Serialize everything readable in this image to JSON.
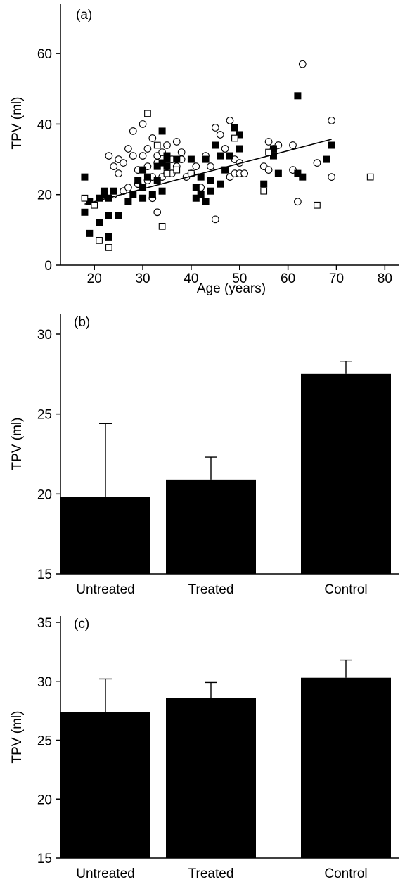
{
  "colors": {
    "ink": "#000000",
    "background": "#ffffff"
  },
  "chart_data": [
    {
      "panel_label": "(a)",
      "type": "scatter",
      "title": "",
      "xlabel": "Age (years)",
      "ylabel": "TPV (ml)",
      "xlim": [
        13,
        83
      ],
      "ylim": [
        0,
        70
      ],
      "xticks": [
        20,
        30,
        40,
        50,
        60,
        70,
        80
      ],
      "yticks": [
        0,
        20,
        40,
        60
      ],
      "grid": false,
      "legend": "none",
      "series": [
        {
          "marker": "open-circle",
          "x": [
            23,
            24,
            25,
            24,
            25,
            26,
            26,
            27,
            27,
            28,
            28,
            29,
            29,
            30,
            30,
            31,
            31,
            31,
            32,
            32,
            32,
            33,
            33,
            33,
            34,
            34,
            35,
            35,
            36,
            36,
            37,
            37,
            38,
            38,
            39,
            40,
            41,
            42,
            43,
            44,
            45,
            45,
            46,
            47,
            48,
            48,
            49,
            49,
            50,
            50,
            51,
            55,
            56,
            56,
            57,
            58,
            61,
            61,
            62,
            63,
            66,
            69,
            69
          ],
          "y": [
            31,
            28,
            30,
            20,
            26,
            21,
            29,
            33,
            22,
            31,
            38,
            27,
            23,
            31,
            40,
            24,
            33,
            28,
            36,
            25,
            19,
            29,
            31,
            15,
            25,
            32,
            26,
            34,
            30,
            26,
            28,
            35,
            32,
            30,
            25,
            26,
            28,
            22,
            31,
            28,
            39,
            13,
            37,
            33,
            41,
            25,
            30,
            26,
            29,
            26,
            26,
            28,
            27,
            35,
            33,
            34,
            34,
            27,
            18,
            57,
            29,
            41,
            25
          ]
        },
        {
          "marker": "filled-square",
          "x": [
            18,
            18,
            19,
            19,
            21,
            21,
            22,
            22,
            23,
            23,
            23,
            24,
            25,
            27,
            28,
            29,
            30,
            30,
            30,
            31,
            32,
            33,
            33,
            34,
            34,
            34,
            35,
            35,
            35,
            37,
            40,
            41,
            41,
            42,
            42,
            43,
            43,
            44,
            44,
            45,
            46,
            46,
            47,
            48,
            49,
            50,
            50,
            55,
            57,
            57,
            58,
            62,
            62,
            63,
            68,
            69
          ],
          "y": [
            15,
            25,
            18,
            9,
            19,
            12,
            21,
            20,
            8,
            14,
            19,
            21,
            14,
            18,
            20,
            24,
            22,
            27,
            19,
            25,
            20,
            24,
            28,
            38,
            29,
            21,
            30,
            28,
            31,
            30,
            30,
            22,
            19,
            20,
            25,
            30,
            18,
            21,
            24,
            34,
            31,
            23,
            27,
            31,
            39,
            37,
            33,
            23,
            31,
            33,
            26,
            48,
            26,
            25,
            30,
            34
          ]
        },
        {
          "marker": "open-square",
          "x": [
            18,
            20,
            21,
            23,
            31,
            33,
            34,
            35,
            37,
            40,
            49,
            55,
            56,
            66,
            77
          ],
          "y": [
            19,
            17,
            7,
            5,
            43,
            34,
            11,
            26,
            27,
            26,
            36,
            21,
            32,
            17,
            25
          ]
        }
      ],
      "regression_line": {
        "x": [
          18,
          69
        ],
        "y": [
          17.3,
          35.7
        ]
      }
    },
    {
      "panel_label": "(b)",
      "type": "bar",
      "title": "",
      "xlabel": "",
      "ylabel": "TPV (ml)",
      "categories": [
        "Untreated",
        "Treated",
        "Control"
      ],
      "values": [
        19.8,
        20.9,
        27.5
      ],
      "error_upper": [
        24.4,
        22.3,
        28.3
      ],
      "ylim": [
        15,
        30
      ],
      "yticks": [
        15,
        20,
        25,
        30
      ],
      "grid": false,
      "legend": "none"
    },
    {
      "panel_label": "(c)",
      "type": "bar",
      "title": "",
      "xlabel": "",
      "ylabel": "TPV (ml)",
      "categories": [
        "Untreated",
        "Treated",
        "Control"
      ],
      "values": [
        27.4,
        28.6,
        30.3
      ],
      "error_upper": [
        30.2,
        29.9,
        31.8
      ],
      "ylim": [
        15,
        35
      ],
      "yticks": [
        15,
        20,
        25,
        30,
        35
      ],
      "grid": false,
      "legend": "none"
    }
  ]
}
